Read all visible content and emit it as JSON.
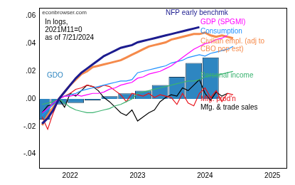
{
  "chart_data": {
    "type": "line",
    "source": "econbrowser.com",
    "annotation": [
      "In logs,",
      "2021M11=0",
      "as of 7/21/2024"
    ],
    "categories": [
      null,
      null,
      null,
      null,
      null,
      "2022",
      null,
      null,
      null,
      null,
      null,
      null,
      null,
      null,
      null,
      null,
      null,
      "2023",
      null,
      null,
      null,
      null,
      null,
      null,
      null,
      null,
      null,
      null,
      null,
      "2024",
      null,
      null,
      null,
      null,
      null,
      null,
      null,
      null,
      null,
      null,
      null,
      "2025",
      null,
      null
    ],
    "ylim": [
      -0.05,
      0.066
    ],
    "yticks": [
      {
        "value": -0.04,
        "label": "-.04"
      },
      {
        "value": -0.02,
        "label": "-.02"
      },
      {
        "value": 0,
        "label": ".00"
      },
      {
        "value": 0.02,
        "label": ".02"
      },
      {
        "value": 0.04,
        "label": ".04"
      },
      {
        "value": 0.06,
        "label": ".06"
      }
    ],
    "grid": false,
    "series": [
      {
        "name": "NFP early benchmk",
        "color": "#1c1c8f",
        "type": "line",
        "values": [
          -0.018,
          -0.014,
          -0.008,
          0,
          0.005,
          0.01,
          0.015,
          0.019,
          0.022,
          0.025,
          0.028,
          0.031,
          0.033,
          0.035,
          0.037,
          0.038,
          0.039,
          0.041,
          0.042,
          0.043,
          0.044,
          0.045,
          0.046,
          0.047,
          0.048,
          0.049,
          0.05,
          0.051,
          0.052,
          null,
          null,
          null,
          null,
          null,
          null,
          null,
          null,
          null,
          null,
          null,
          null,
          null,
          null,
          null
        ]
      },
      {
        "name": "GDP (SPGMI)",
        "color": "#ff00ff",
        "type": "line",
        "values": [
          -0.01,
          -0.007,
          -0.003,
          0,
          0.002,
          0.002,
          0.003,
          0.002,
          0.003,
          0.004,
          0.004,
          0.005,
          0.007,
          0.008,
          0.01,
          0.011,
          0.012,
          0.015,
          0.016,
          0.018,
          0.019,
          0.02,
          0.022,
          0.024,
          0.027,
          0.03,
          0.033,
          0.036,
          0.038,
          0.04,
          0.041,
          0.043,
          0.044,
          0.046,
          null,
          null,
          null,
          null,
          null,
          null,
          null,
          null,
          null,
          null
        ]
      },
      {
        "name": "Consumption",
        "color": "#1e90ff",
        "type": "line",
        "values": [
          -0.012,
          -0.008,
          -0.004,
          0,
          0.002,
          0.003,
          0.004,
          0.006,
          0.007,
          0.008,
          0.009,
          0.01,
          0.011,
          0.012,
          0.013,
          0.013,
          0.014,
          0.019,
          0.02,
          0.021,
          0.022,
          0.023,
          0.024,
          0.026,
          0.027,
          0.028,
          0.03,
          0.031,
          0.032,
          0.031,
          0.033,
          0.034,
          0.035,
          0.036,
          0.038,
          null,
          null,
          null,
          null,
          null,
          null,
          null,
          null,
          null
        ]
      },
      {
        "name": "Civilian empl. (adj to CBO pop est)",
        "color": "#f58a4b",
        "type": "line",
        "values": [
          -0.019,
          -0.012,
          -0.006,
          0,
          0.005,
          0.01,
          0.014,
          0.018,
          0.02,
          0.023,
          0.024,
          0.025,
          0.026,
          0.027,
          0.028,
          0.03,
          0.032,
          0.034,
          0.036,
          0.038,
          0.039,
          0.04,
          0.041,
          0.043,
          0.044,
          0.045,
          0.046,
          0.047,
          0.047,
          0.048,
          0.046,
          0.045,
          0.046,
          0.045,
          0.044,
          null,
          null,
          null,
          null,
          null,
          null,
          null,
          null,
          null
        ]
      },
      {
        "name": "Personal income",
        "color": "#3cb371",
        "type": "line",
        "values": [
          -0.004,
          -0.003,
          -0.002,
          0,
          -0.003,
          -0.006,
          -0.008,
          -0.009,
          -0.01,
          -0.01,
          -0.009,
          -0.008,
          -0.007,
          -0.005,
          -0.004,
          -0.002,
          0.0,
          0.004,
          0.005,
          0.006,
          0.007,
          0.008,
          0.009,
          0.01,
          0.011,
          0.012,
          0.013,
          0.013,
          0.014,
          0.016,
          0.017,
          0.017,
          0.018,
          0.019,
          0.02,
          null,
          null,
          null,
          null,
          null,
          null,
          null,
          null,
          null
        ]
      },
      {
        "name": "Mfg. prod'n",
        "color": "#e8141c",
        "type": "line",
        "values": [
          -0.013,
          -0.022,
          -0.01,
          0,
          0.002,
          0.004,
          0.007,
          0.008,
          0.01,
          0.009,
          0.008,
          0.01,
          0.009,
          0.006,
          0.003,
          -0.002,
          0.004,
          0.003,
          0.002,
          0.004,
          0.001,
          0.003,
          0.002,
          0.001,
          -0.004,
          0.004,
          -0.003,
          -0.005,
          0.004,
          0.008,
          0.001,
          0.006,
          -0.002,
          0.004,
          0.003,
          null,
          null,
          null,
          null,
          null,
          null,
          null,
          null,
          null
        ]
      },
      {
        "name": "Mfg. & trade sales",
        "color": "#000000",
        "type": "line",
        "values": [
          -0.01,
          -0.005,
          -0.004,
          0,
          -0.006,
          0.004,
          0.002,
          0.006,
          0.01,
          0.009,
          0.006,
          0.001,
          -0.002,
          -0.006,
          -0.01,
          -0.012,
          -0.008,
          -0.016,
          -0.013,
          -0.01,
          -0.008,
          -0.002,
          0.001,
          0.003,
          0.002,
          0.008,
          0.006,
          0.01,
          0.014,
          0.004,
          -0.001,
          0.005,
          0.002,
          0.004,
          null,
          null,
          null,
          null,
          null,
          null,
          null,
          null,
          null,
          null
        ]
      },
      {
        "name": "GDO",
        "color": "#2e86c1",
        "type": "bar",
        "values": [
          -0.015,
          null,
          null,
          -0.004,
          null,
          null,
          -0.003,
          null,
          null,
          -0.001,
          null,
          null,
          0.002,
          null,
          null,
          0.004,
          null,
          null,
          0.006,
          null,
          null,
          0.01,
          null,
          null,
          0.016,
          null,
          null,
          0.026,
          null,
          null,
          0.03,
          null,
          null,
          null,
          null,
          null,
          null,
          null,
          null,
          null,
          null,
          null,
          null,
          null
        ]
      }
    ]
  }
}
